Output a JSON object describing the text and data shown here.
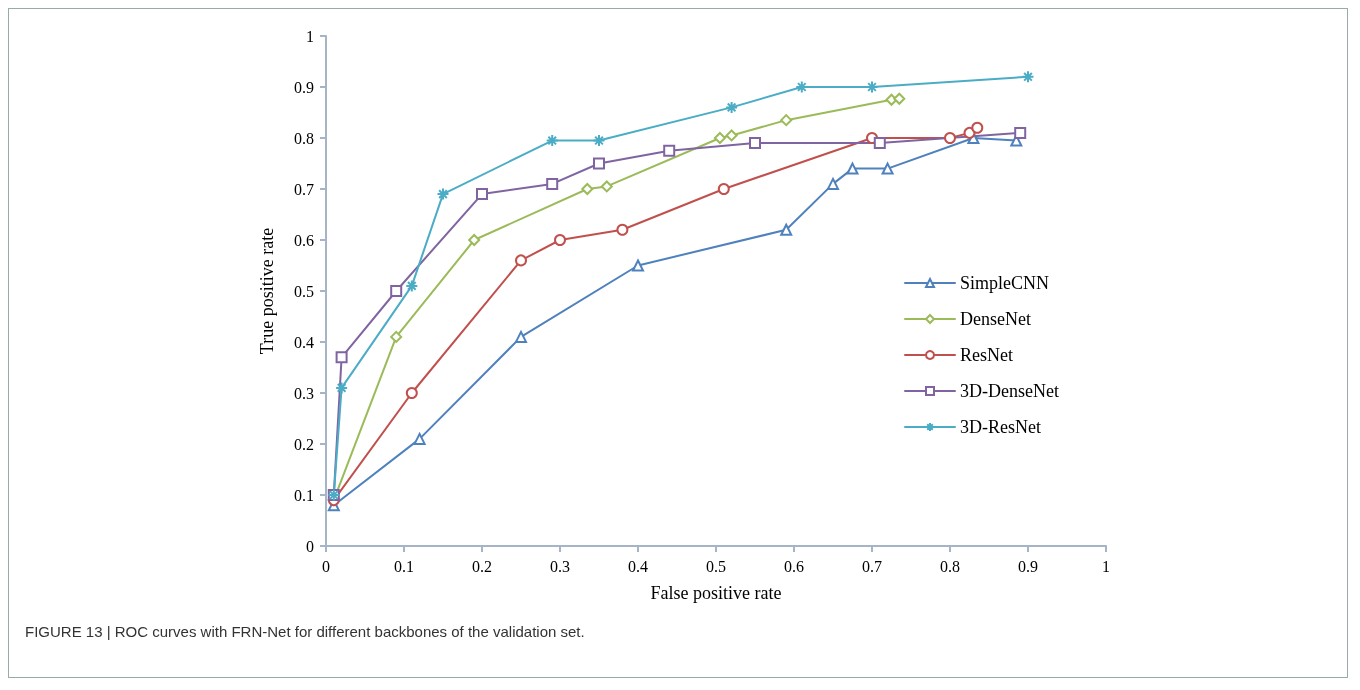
{
  "chart_data": {
    "type": "line",
    "xlabel": "False positive rate",
    "ylabel": "True positive rate",
    "annotations": [
      "FIGURE 13 | ROC curves with FRN-Net for different backbones of the validation set."
    ],
    "xlim": [
      0,
      1
    ],
    "ylim": [
      0,
      1
    ],
    "xticks": [
      0,
      0.1,
      0.2,
      0.3,
      0.4,
      0.5,
      0.6,
      0.7,
      0.8,
      0.9,
      1
    ],
    "yticks": [
      0,
      0.1,
      0.2,
      0.3,
      0.4,
      0.5,
      0.6,
      0.7,
      0.8,
      0.9,
      1
    ],
    "grid": false,
    "legend": "right",
    "line_style": "solid",
    "series": [
      {
        "name": "SimpleCNN",
        "color": "#4f81bd",
        "marker": "triangle",
        "x": [
          0.01,
          0.12,
          0.25,
          0.4,
          0.59,
          0.65,
          0.675,
          0.72,
          0.83,
          0.885
        ],
        "values": [
          0.08,
          0.21,
          0.41,
          0.55,
          0.62,
          0.71,
          0.74,
          0.74,
          0.8,
          0.795
        ]
      },
      {
        "name": "DenseNet",
        "color": "#9bbb59",
        "marker": "diamond",
        "x": [
          0.01,
          0.09,
          0.19,
          0.335,
          0.36,
          0.505,
          0.52,
          0.59,
          0.725,
          0.735
        ],
        "values": [
          0.09,
          0.41,
          0.6,
          0.7,
          0.705,
          0.8,
          0.805,
          0.835,
          0.875,
          0.877
        ]
      },
      {
        "name": "ResNet",
        "color": "#c0504d",
        "marker": "circle",
        "x": [
          0.01,
          0.11,
          0.25,
          0.3,
          0.38,
          0.51,
          0.7,
          0.8,
          0.825,
          0.835
        ],
        "values": [
          0.09,
          0.3,
          0.56,
          0.6,
          0.62,
          0.7,
          0.8,
          0.8,
          0.81,
          0.82
        ]
      },
      {
        "name": "3D-DenseNet",
        "color": "#8064a2",
        "marker": "square",
        "x": [
          0.01,
          0.02,
          0.09,
          0.2,
          0.29,
          0.35,
          0.44,
          0.55,
          0.71,
          0.89
        ],
        "values": [
          0.1,
          0.37,
          0.5,
          0.69,
          0.71,
          0.75,
          0.775,
          0.79,
          0.79,
          0.81
        ]
      },
      {
        "name": "3D-ResNet",
        "color": "#4bacc6",
        "marker": "cross",
        "x": [
          0.01,
          0.02,
          0.11,
          0.15,
          0.29,
          0.35,
          0.52,
          0.61,
          0.7,
          0.9
        ],
        "values": [
          0.1,
          0.31,
          0.51,
          0.69,
          0.795,
          0.795,
          0.86,
          0.9,
          0.9,
          0.92
        ]
      }
    ]
  }
}
